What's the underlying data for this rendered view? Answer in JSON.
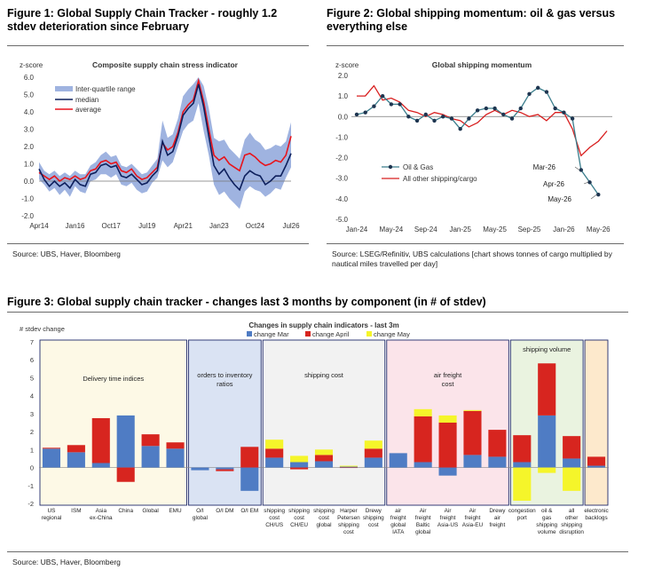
{
  "fig1": {
    "title": "Figure 1: Global Supply Chain Tracker - roughly 1.2 stdev deterioration since February",
    "source": "Source: UBS, Haver, Bloomberg"
  },
  "fig2": {
    "title": "Figure 2: Global shipping momentum: oil & gas versus everything else",
    "source": "Source: LSEG/Refinitiv, UBS calculations [chart shows tonnes of cargo multiplied by nautical miles travelled per day]"
  },
  "fig3": {
    "title": "Figure 3: Global supply chain tracker - changes last 3 months by component (in # of stdev)",
    "source": "Source: UBS, Haver, Bloomberg"
  },
  "chart_data": [
    {
      "type": "line",
      "title": "Composite supply chain stress indicator",
      "ylabel": "z-score",
      "ylim": [
        -2,
        6
      ],
      "yticks": [
        "6.0",
        "5.0",
        "4.0",
        "3.0",
        "2.0",
        "1.0",
        "0.0",
        "-1.0",
        "-2.0"
      ],
      "xticks": [
        "Apr14",
        "Jan16",
        "Oct17",
        "Jul19",
        "Apr21",
        "Jan23",
        "Oct24",
        "Jul26"
      ],
      "legend": [
        "Inter-quartile range",
        "median",
        "average"
      ],
      "legend_position": "top-left",
      "colors": {
        "iqr": "#9fb3e0",
        "median": "#0d1f5c",
        "average": "#e8141b"
      },
      "x": [
        2014.25,
        2014.5,
        2014.75,
        2015.0,
        2015.25,
        2015.5,
        2015.75,
        2016.0,
        2016.25,
        2016.5,
        2016.75,
        2017.0,
        2017.25,
        2017.5,
        2017.75,
        2018.0,
        2018.25,
        2018.5,
        2018.75,
        2019.0,
        2019.25,
        2019.5,
        2019.75,
        2020.0,
        2020.25,
        2020.5,
        2020.75,
        2021.0,
        2021.25,
        2021.5,
        2021.75,
        2022.0,
        2022.25,
        2022.5,
        2022.75,
        2023.0,
        2023.25,
        2023.5,
        2023.75,
        2024.0,
        2024.25,
        2024.5,
        2024.75,
        2025.0,
        2025.25,
        2025.5,
        2025.75,
        2026.0,
        2026.25,
        2026.5
      ],
      "series": [
        {
          "name": "median",
          "values": [
            0.7,
            0.1,
            -0.3,
            0.0,
            -0.3,
            -0.1,
            -0.4,
            0.1,
            -0.2,
            -0.3,
            0.4,
            0.5,
            0.9,
            1.0,
            0.8,
            0.9,
            0.3,
            0.2,
            0.4,
            0.1,
            -0.2,
            -0.1,
            0.3,
            0.6,
            2.3,
            1.5,
            1.7,
            2.6,
            3.8,
            4.2,
            4.5,
            5.6,
            4.3,
            2.6,
            0.9,
            0.4,
            0.7,
            0.2,
            -0.2,
            -0.5,
            0.3,
            0.6,
            0.4,
            0.3,
            -0.2,
            0.0,
            0.3,
            0.3,
            0.9,
            1.6
          ]
        },
        {
          "name": "average",
          "values": [
            0.5,
            0.3,
            0.1,
            0.3,
            0.0,
            0.2,
            0.1,
            0.3,
            0.1,
            0.2,
            0.6,
            0.7,
            1.1,
            1.2,
            1.0,
            1.1,
            0.6,
            0.5,
            0.7,
            0.3,
            0.1,
            0.2,
            0.5,
            0.8,
            2.2,
            1.8,
            2.0,
            2.8,
            4.0,
            4.4,
            4.7,
            5.8,
            4.6,
            3.0,
            1.5,
            1.2,
            1.4,
            1.0,
            0.8,
            0.6,
            1.5,
            1.6,
            1.4,
            1.1,
            0.9,
            1.0,
            1.2,
            1.1,
            1.5,
            2.6
          ]
        },
        {
          "name": "iqr_low",
          "values": [
            0.1,
            -0.2,
            -0.6,
            -0.4,
            -0.8,
            -0.5,
            -0.9,
            -0.3,
            -0.6,
            -0.7,
            0.0,
            0.1,
            0.4,
            0.4,
            0.2,
            0.4,
            -0.2,
            -0.3,
            -0.1,
            -0.5,
            -0.7,
            -0.6,
            -0.1,
            0.2,
            1.2,
            0.8,
            1.1,
            2.0,
            2.9,
            3.3,
            3.5,
            4.5,
            2.9,
            1.5,
            -0.2,
            -0.8,
            -0.6,
            -1.0,
            -1.3,
            -1.6,
            -0.6,
            -0.3,
            -0.5,
            -0.6,
            -0.9,
            -0.7,
            -0.4,
            -0.5,
            0.2,
            0.8
          ]
        },
        {
          "name": "iqr_high",
          "values": [
            1.1,
            0.6,
            0.4,
            0.6,
            0.3,
            0.5,
            0.3,
            0.6,
            0.4,
            0.4,
            0.9,
            1.1,
            1.5,
            1.7,
            1.4,
            1.5,
            0.9,
            0.8,
            1.0,
            0.7,
            0.4,
            0.5,
            0.9,
            1.3,
            3.5,
            2.5,
            2.7,
            3.6,
            4.9,
            5.3,
            5.6,
            6.0,
            5.5,
            4.2,
            2.5,
            2.3,
            2.4,
            1.9,
            1.6,
            1.3,
            2.4,
            2.8,
            2.4,
            2.2,
            1.8,
            1.9,
            2.1,
            2.0,
            2.3,
            3.4
          ]
        }
      ]
    },
    {
      "type": "line",
      "title": "Global shipping momentum",
      "ylabel": "z-score",
      "ylim": [
        -5,
        2
      ],
      "yticks": [
        "2.0",
        "1.0",
        "0.0",
        "-1.0",
        "-2.0",
        "-3.0",
        "-4.0",
        "-5.0"
      ],
      "xticks": [
        "Jan-24",
        "May-24",
        "Sep-24",
        "Jan-25",
        "May-25",
        "Sep-25",
        "Jan-26",
        "May-26"
      ],
      "legend": [
        "Oil & Gas",
        "All other shipping/cargo"
      ],
      "legend_position": "lower-left",
      "colors": {
        "oil": "#3a7d8c",
        "other": "#d81e1e"
      },
      "x": [
        "Jan-24",
        "Feb-24",
        "Mar-24",
        "Apr-24",
        "May-24",
        "Jun-24",
        "Jul-24",
        "Aug-24",
        "Sep-24",
        "Oct-24",
        "Nov-24",
        "Dec-24",
        "Jan-25",
        "Feb-25",
        "Mar-25",
        "Apr-25",
        "May-25",
        "Jun-25",
        "Jul-25",
        "Aug-25",
        "Sep-25",
        "Oct-25",
        "Nov-25",
        "Dec-25",
        "Jan-26",
        "Feb-26",
        "Mar-26",
        "Apr-26",
        "May-26",
        "Jun-26"
      ],
      "series": [
        {
          "name": "Oil & Gas",
          "values": [
            0.1,
            0.2,
            0.5,
            1.0,
            0.6,
            0.6,
            0.0,
            -0.2,
            0.1,
            -0.2,
            0.0,
            -0.1,
            -0.6,
            -0.1,
            0.3,
            0.4,
            0.4,
            0.1,
            -0.1,
            0.4,
            1.1,
            1.4,
            1.2,
            0.4,
            0.2,
            -0.1,
            -2.6,
            -3.2,
            -3.8,
            null
          ]
        },
        {
          "name": "All other shipping/cargo",
          "values": [
            1.0,
            1.0,
            1.5,
            0.8,
            0.9,
            0.7,
            0.3,
            0.2,
            0.0,
            0.2,
            0.1,
            -0.1,
            -0.2,
            -0.5,
            -0.3,
            0.1,
            0.3,
            0.1,
            0.3,
            0.2,
            0.0,
            0.1,
            -0.2,
            0.2,
            0.2,
            -0.6,
            -1.9,
            -1.5,
            -1.2,
            -0.7
          ]
        }
      ],
      "annotations": [
        "Mar-26",
        "Apr-26",
        "May-26"
      ]
    },
    {
      "type": "bar",
      "title": "Changes in supply chain indicators - last 3m",
      "ylabel": "# stdev change",
      "ylim": [
        -2,
        7
      ],
      "yticks": [
        "7",
        "6",
        "5",
        "4",
        "3",
        "2",
        "1",
        "0",
        "-1",
        "-2"
      ],
      "legend": [
        "change Mar",
        "change April",
        "change May"
      ],
      "legend_position": "top",
      "colors": {
        "mar": "#4f7cc4",
        "apr": "#d7251f",
        "may": "#f5f52a"
      },
      "categories": [
        "US regional",
        "ISM",
        "Asia ex-China",
        "China",
        "Global",
        "EMU",
        "O/I global",
        "O/I DM",
        "O/I EM",
        "shipping cost CH/US",
        "shipping cost CH/EU",
        "shipping cost global",
        "Harper Petersen shipping cost",
        "Drewy shipping cost",
        "air freight global IATA",
        "Air freight Baltic global",
        "Air freight Asia-US",
        "Air freight Asia-EU",
        "Drewy air freight",
        "congestion port",
        "oil & gas shipping volume",
        "all other shipping disruption",
        "electronic backlogs"
      ],
      "series": [
        {
          "name": "change Mar",
          "values": [
            1.05,
            0.85,
            0.25,
            2.9,
            1.2,
            1.05,
            -0.15,
            -0.1,
            -1.3,
            0.55,
            0.3,
            0.35,
            0.05,
            0.55,
            0.8,
            0.3,
            -0.45,
            0.7,
            0.6,
            0.3,
            2.9,
            0.5,
            0.1
          ]
        },
        {
          "name": "change April",
          "values": [
            0.05,
            0.4,
            2.5,
            -0.8,
            0.65,
            0.35,
            0.0,
            -0.1,
            1.15,
            0.5,
            -0.1,
            0.35,
            -0.02,
            0.5,
            0.0,
            2.55,
            2.5,
            2.45,
            1.5,
            1.5,
            2.9,
            1.25,
            0.5
          ]
        },
        {
          "name": "change May",
          "values": [
            0.0,
            0.0,
            0.0,
            0.0,
            0.0,
            0.0,
            0.0,
            0.0,
            0.0,
            0.5,
            0.35,
            0.3,
            0.05,
            0.45,
            0.0,
            0.4,
            0.4,
            0.05,
            0.0,
            -1.85,
            -0.3,
            -1.3,
            0.0
          ]
        }
      ],
      "groups": [
        {
          "label": "Delivery time indices",
          "color": "#fdf9e6"
        },
        {
          "label": "orders to inventory ratios",
          "color": "#dae3f3"
        },
        {
          "label": "shipping cost",
          "color": "#f2f2f2"
        },
        {
          "label": "air freight cost",
          "color": "#fbe4ea"
        },
        {
          "label": "shipping volume",
          "color": "#eaf3e0"
        },
        {
          "label": "",
          "color": "#fde9cc"
        }
      ]
    }
  ]
}
